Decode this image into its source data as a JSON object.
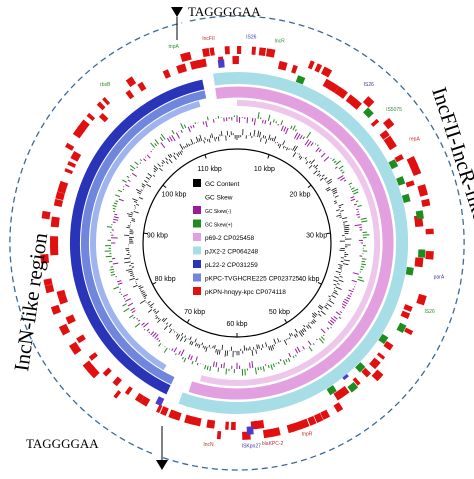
{
  "labels": {
    "motif_top": "TAGGGGAA",
    "motif_bottom": "TAGGGGAA",
    "region_right": "IncFII-IncR-like region",
    "region_left": "IncN-like region"
  },
  "ticks": [
    "10 kbp",
    "20 kbp",
    "30 kbp",
    "40 kbp",
    "50 kbp",
    "60 kbp",
    "70 kbp",
    "80 kbp",
    "90 kbp",
    "100 kbp",
    "110 kbp"
  ],
  "legend": [
    {
      "label": "GC Content",
      "color": "#000000"
    },
    {
      "label": "GC Skew",
      "color": ""
    },
    {
      "label": "GC Skew(-)",
      "color": "#9b1b9b"
    },
    {
      "label": "GC Skew(+)",
      "color": "#1e8c1e"
    },
    {
      "label": "p69-2 CP025458",
      "color": "#e2a0e0"
    },
    {
      "label": "pJX2-2 CP064248",
      "color": "#a6dde6"
    },
    {
      "label": "pL22-2 CP031259",
      "color": "#2a34b8"
    },
    {
      "label": "pKPC-TVGHCRE225 CP023725",
      "color": "#6f86dc"
    },
    {
      "label": "pKPN-hnqyy-kpc CP074118",
      "color": "#e01010"
    }
  ],
  "gene_labels": [
    "tnpA",
    "IncFII",
    "IS26",
    "IncR",
    "blaKPC-2",
    "ISKpn27",
    "rbsB",
    "IncN",
    "IS26",
    "IS5075",
    "repA",
    "parA",
    "IS26",
    "tnpR"
  ],
  "colors": {
    "dashed": "#3a6a9e",
    "blue_ring": "#2a34b8",
    "lightblue_ring": "#a6dde6",
    "pink_ring": "#e2a0e0",
    "red_ring": "#e01010",
    "green_ring": "#1e8c1e",
    "skew_neg": "#9b1b9b",
    "skew_pos": "#1e8c1e"
  }
}
